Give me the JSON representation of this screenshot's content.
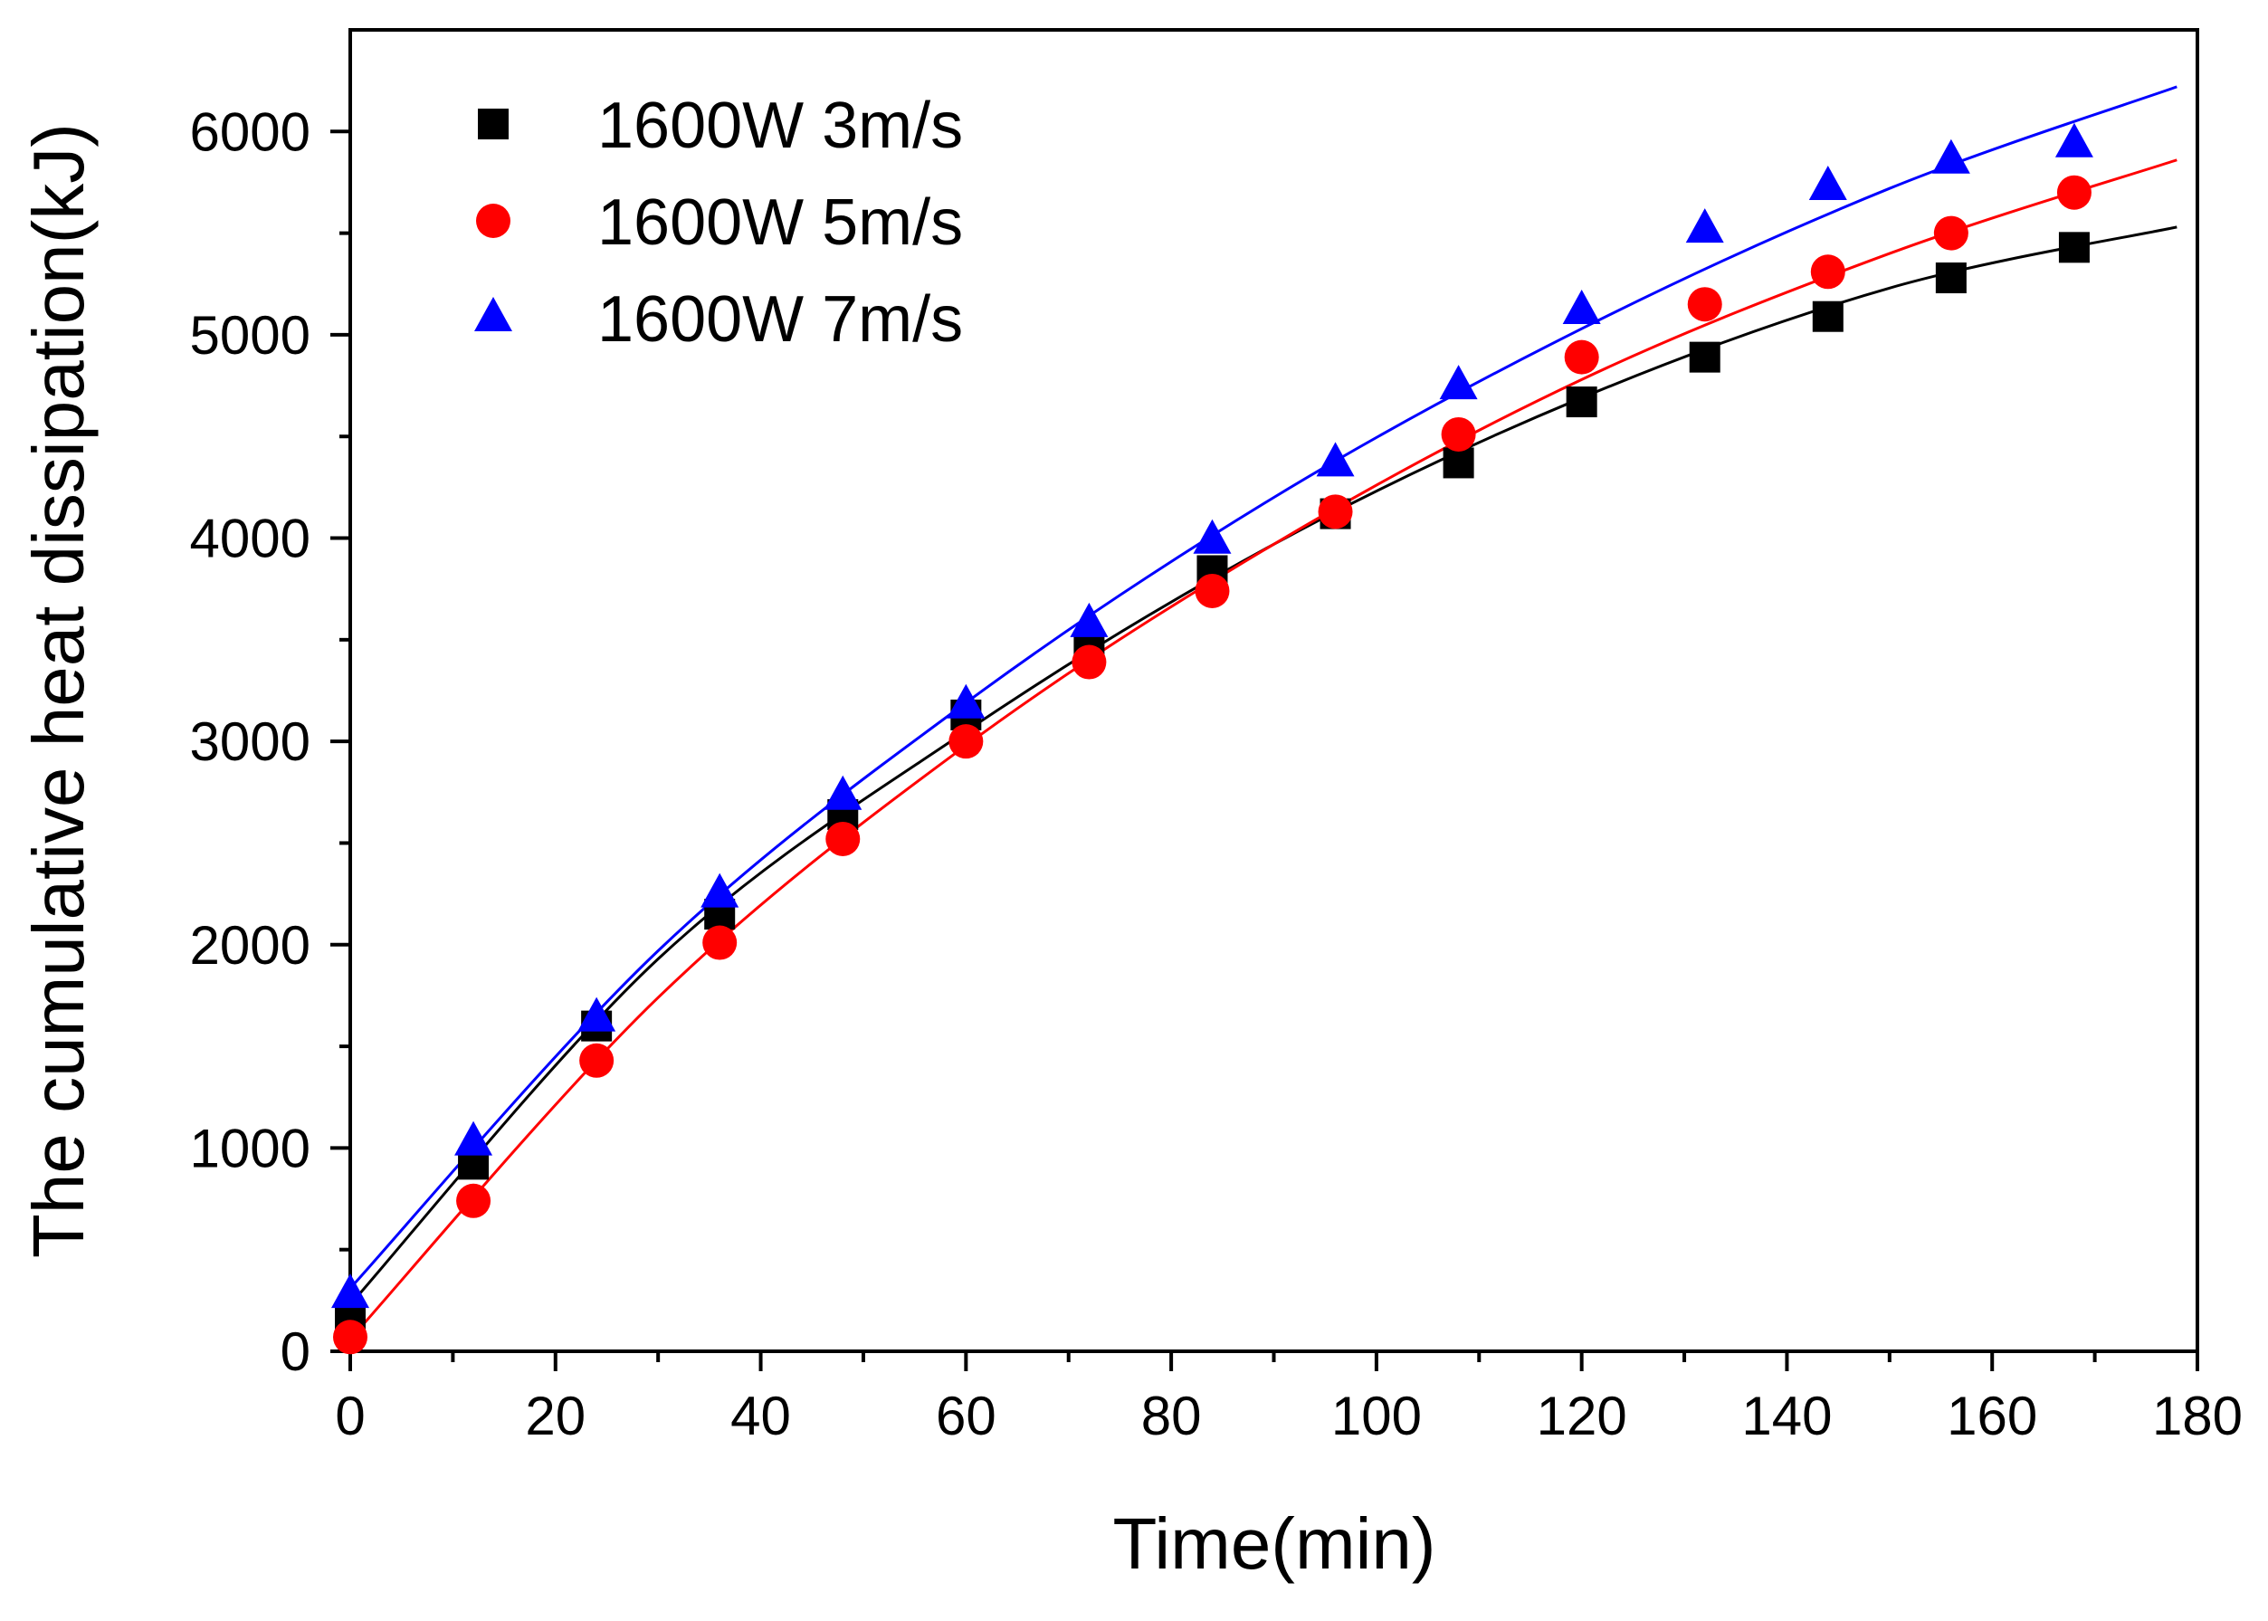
{
  "chart_data": {
    "type": "scatter",
    "xlabel": "Time(min)",
    "ylabel": "The cumulative heat dissipation(kJ)",
    "xlim": [
      0,
      180
    ],
    "ylim": [
      0,
      6500
    ],
    "x_ticks": [
      0,
      20,
      40,
      60,
      80,
      100,
      120,
      140,
      160,
      180
    ],
    "y_ticks": [
      0,
      1000,
      2000,
      3000,
      4000,
      5000,
      6000
    ],
    "x_minor_step": 10,
    "y_minor_step": 500,
    "legend_position": "top-left",
    "series": [
      {
        "name": "1600W 3m/s",
        "marker": "square",
        "color": "#000000",
        "x": [
          0,
          12,
          24,
          36,
          48,
          60,
          72,
          84,
          96,
          108,
          120,
          132,
          144,
          156,
          168
        ],
        "y": [
          150,
          920,
          1600,
          2150,
          2640,
          3130,
          3470,
          3840,
          4120,
          4370,
          4670,
          4890,
          5090,
          5280,
          5430
        ],
        "fit": {
          "x": [
            0,
            30,
            60,
            90,
            120,
            150,
            178
          ],
          "y": [
            230,
            1930,
            3050,
            3970,
            4690,
            5230,
            5530
          ]
        }
      },
      {
        "name": "1600W 5m/s",
        "marker": "circle",
        "color": "#ff0000",
        "x": [
          0,
          12,
          24,
          36,
          48,
          60,
          72,
          84,
          96,
          108,
          120,
          132,
          144,
          156,
          168
        ],
        "y": [
          70,
          740,
          1430,
          2010,
          2520,
          3000,
          3390,
          3740,
          4130,
          4510,
          4890,
          5150,
          5310,
          5500,
          5700
        ],
        "fit": {
          "x": [
            0,
            30,
            60,
            90,
            120,
            150,
            178
          ],
          "y": [
            60,
            1740,
            2980,
            3970,
            4780,
            5400,
            5860
          ]
        }
      },
      {
        "name": "1600W 7m/s",
        "marker": "triangle",
        "color": "#0000ff",
        "x": [
          0,
          12,
          24,
          36,
          48,
          60,
          72,
          84,
          96,
          108,
          120,
          132,
          144,
          156,
          168
        ],
        "y": [
          280,
          1030,
          1640,
          2250,
          2730,
          3180,
          3580,
          3990,
          4370,
          4750,
          5120,
          5520,
          5730,
          5860,
          5940
        ],
        "fit": {
          "x": [
            0,
            30,
            60,
            90,
            120,
            150,
            178
          ],
          "y": [
            310,
            1970,
            3190,
            4200,
            5030,
            5720,
            6220
          ]
        }
      }
    ]
  }
}
